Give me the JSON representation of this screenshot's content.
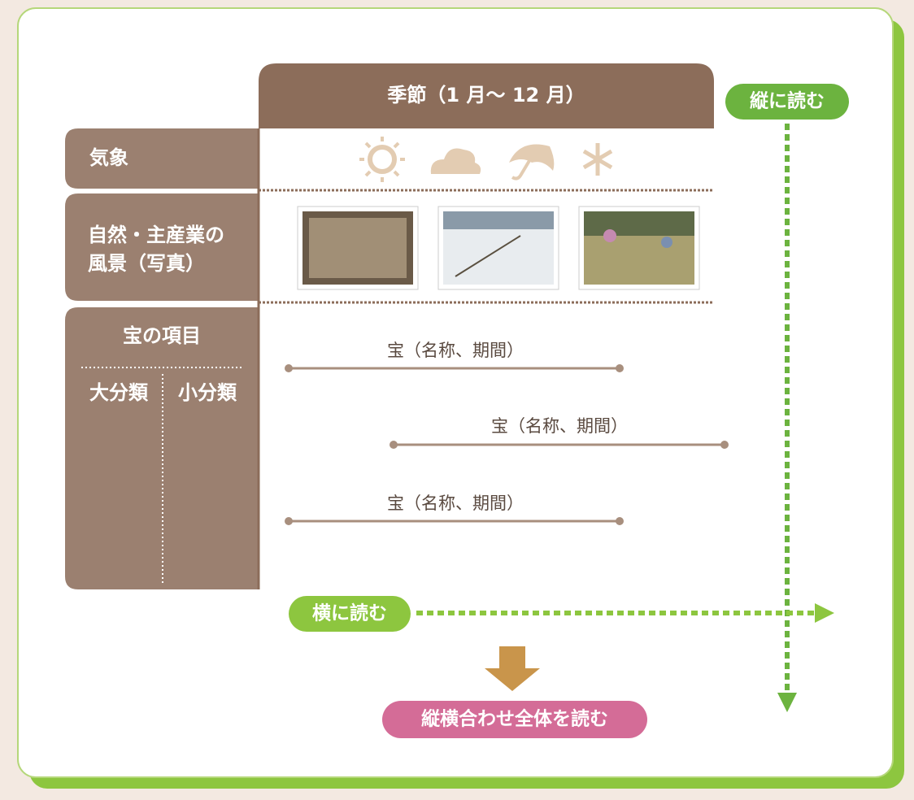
{
  "header": {
    "title": "季節（1 月〜 12 月）"
  },
  "vertical_reading": "縦に読む",
  "rows": {
    "weather": "気象",
    "landscape": [
      "自然・主産業の",
      "風景（写真）"
    ],
    "treasure": "宝の項目",
    "major": "大分類",
    "minor": "小分類"
  },
  "treasures": [
    "宝（名称、期間）",
    "宝（名称、期間）",
    "宝（名称、期間）"
  ],
  "horizontal_reading": "横に読む",
  "combined_reading": "縦横合わせ全体を読む"
}
